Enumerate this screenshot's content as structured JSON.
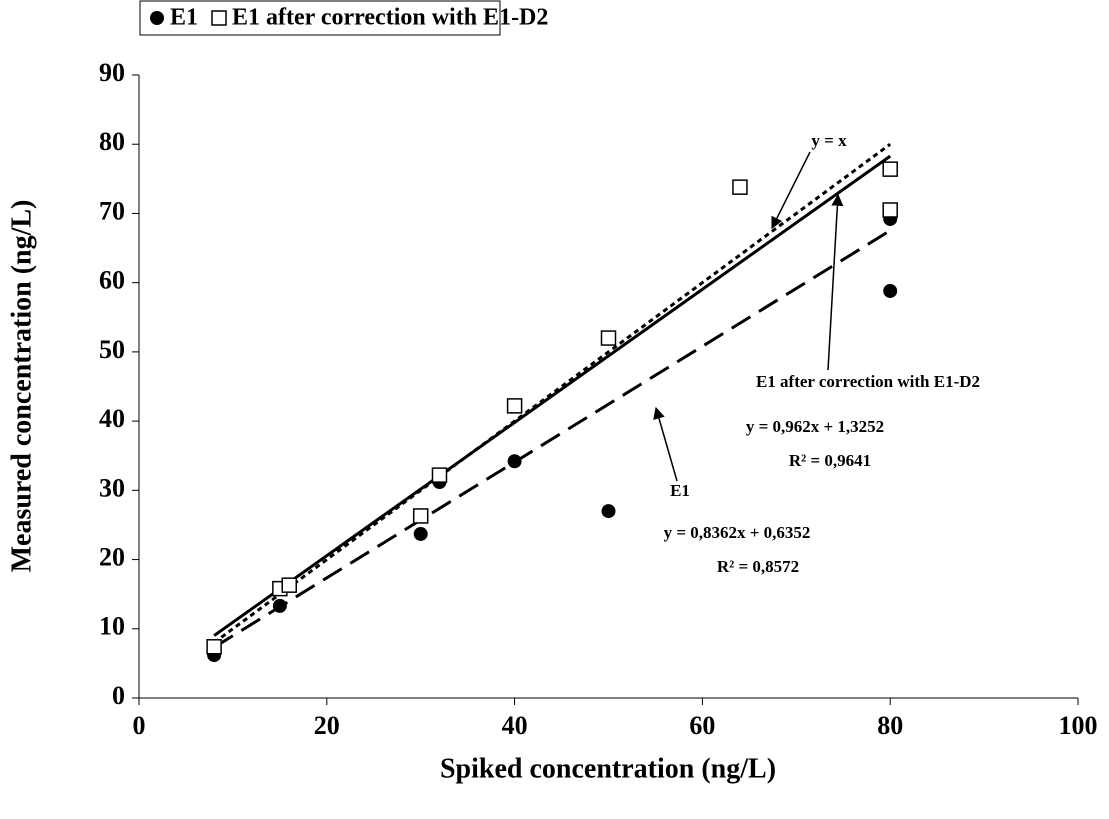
{
  "chart_data": {
    "type": "scatter",
    "xlabel": "Spiked concentration (ng/L)",
    "ylabel": "Measured concentration (ng/L)",
    "xlim": [
      0,
      100
    ],
    "xticks": [
      0,
      20,
      40,
      60,
      80,
      100
    ],
    "ylim": [
      0,
      90
    ],
    "yticks": [
      0,
      10,
      20,
      30,
      40,
      50,
      60,
      70,
      80,
      90
    ],
    "legend": "top-left",
    "series": [
      {
        "name": "E1",
        "marker": "circle",
        "color": "#000000",
        "x": [
          8,
          15,
          30,
          32,
          40,
          50,
          80,
          80
        ],
        "values": [
          6.2,
          13.3,
          23.7,
          31.2,
          34.2,
          27.0,
          58.8,
          69.2
        ]
      },
      {
        "name": "E1 after correction with E1-D2",
        "marker": "square",
        "color": "#000000",
        "x": [
          8,
          15,
          16,
          30,
          32,
          40,
          50,
          64,
          80,
          80
        ],
        "values": [
          7.4,
          15.8,
          16.3,
          26.3,
          32.2,
          42.2,
          52.0,
          73.8,
          70.5,
          76.4
        ]
      }
    ],
    "trendlines": [
      {
        "dash": "dotted",
        "x": [
          8,
          80
        ],
        "values": [
          8,
          80
        ]
      },
      {
        "dash": "solid",
        "x": [
          8,
          80
        ],
        "values": [
          9.02,
          78.28
        ]
      },
      {
        "dash": "dashed",
        "x": [
          8,
          80
        ],
        "values": [
          7.32,
          67.53
        ]
      }
    ],
    "annotations": [
      "y = x",
      "E1 after correction with E1-D2",
      "y = 0,962x + 1,3252",
      "R² = 0,9641",
      "E1",
      "y = 0,8362x + 0,6352",
      "R² = 0,8572"
    ]
  }
}
